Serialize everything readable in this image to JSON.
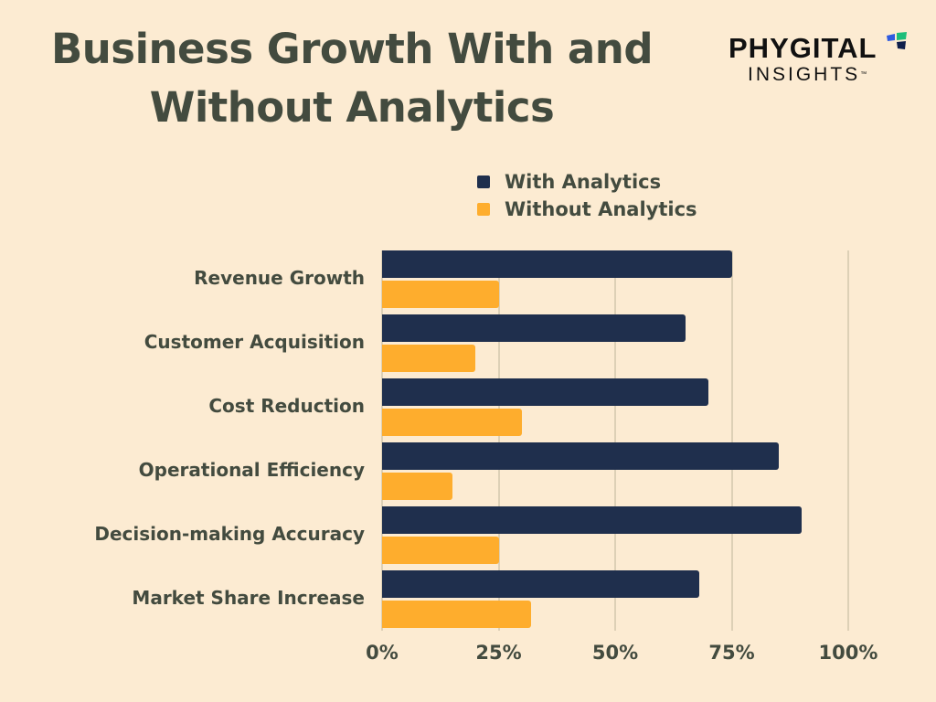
{
  "header": {
    "title": "Business Growth With and Without Analytics",
    "logo_top": "PHYGITAL",
    "logo_bottom": "INSIGHTS",
    "logo_tm": "™"
  },
  "colors": {
    "background": "#FCEBD2",
    "with_analytics": "#1F2F4D",
    "without_analytics": "#FEAD2D",
    "text": "#434B3F",
    "grid": "#DDD0B6"
  },
  "legend": [
    {
      "label": "With Analytics",
      "color": "#1F2F4D"
    },
    {
      "label": "Without Analytics",
      "color": "#FEAD2D"
    }
  ],
  "axis": {
    "ticks": [
      "0%",
      "25%",
      "50%",
      "75%",
      "100%"
    ]
  },
  "chart_data": {
    "type": "bar",
    "orientation": "horizontal",
    "title": "Business Growth With and Without Analytics",
    "xlabel": "",
    "ylabel": "",
    "xlim": [
      0,
      100
    ],
    "x_unit": "%",
    "grid": true,
    "legend_position": "top-right",
    "categories": [
      "Revenue Growth",
      "Customer Acquisition",
      "Cost Reduction",
      "Operational Efficiency",
      "Decision-making Accuracy",
      "Market Share Increase"
    ],
    "series": [
      {
        "name": "With Analytics",
        "color": "#1F2F4D",
        "values": [
          75,
          65,
          70,
          85,
          90,
          68
        ]
      },
      {
        "name": "Without Analytics",
        "color": "#FEAD2D",
        "values": [
          25,
          20,
          30,
          15,
          25,
          32
        ]
      }
    ],
    "tick_labels": [
      "0%",
      "25%",
      "50%",
      "75%",
      "100%"
    ]
  }
}
